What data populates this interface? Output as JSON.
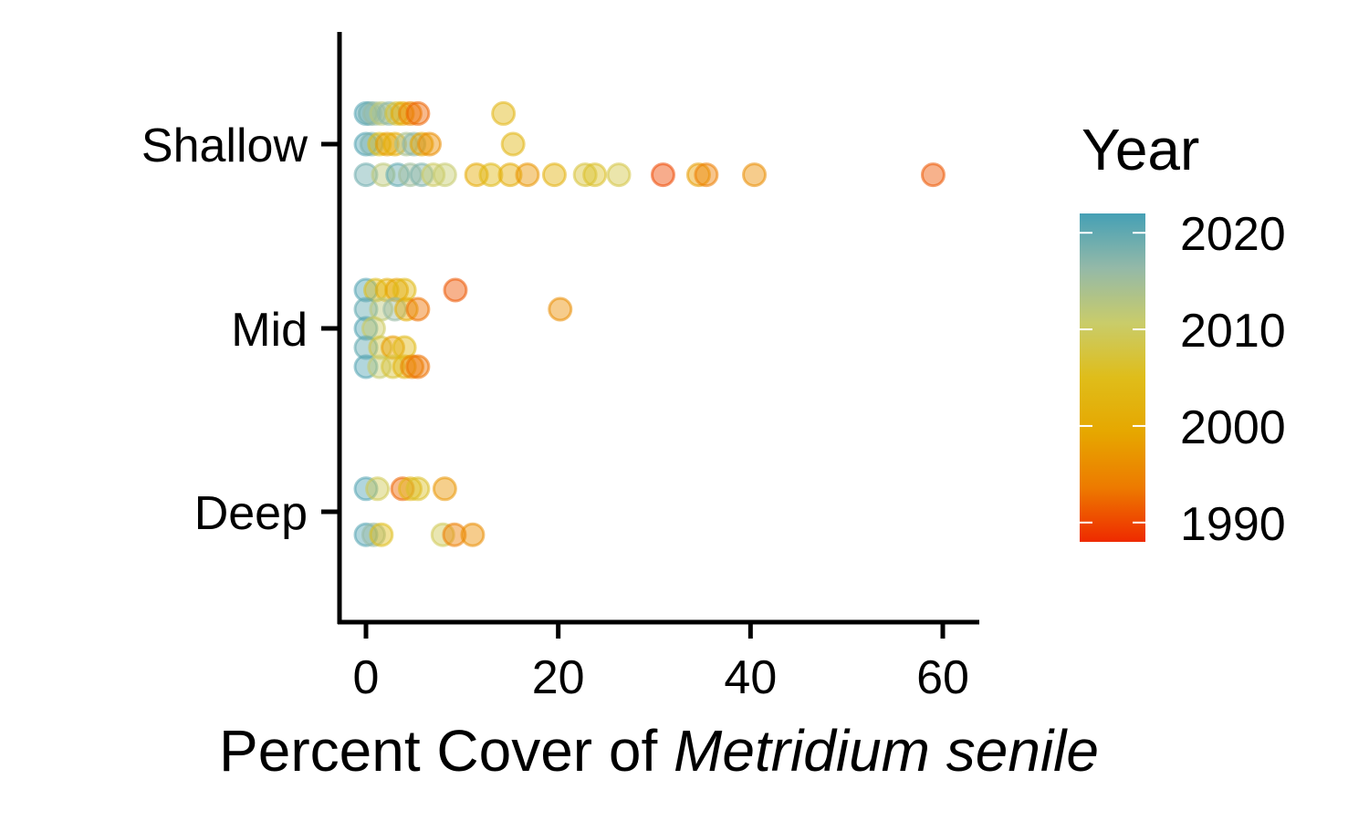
{
  "chart_data": {
    "type": "scatter",
    "xlabel_prefix": "Percent Cover of ",
    "xlabel_species": "Metridium senile",
    "ylabel": "",
    "xlim": [
      -3,
      62
    ],
    "x_ticks": [
      0,
      20,
      40,
      60
    ],
    "y_categories": [
      "Deep",
      "Mid",
      "Shallow"
    ],
    "legend": {
      "title": "Year",
      "ticks": [
        2020,
        2010,
        2000,
        1990
      ],
      "range": [
        1988,
        2022
      ],
      "colors": [
        "#ee2a00",
        "#ed7b00",
        "#e6a700",
        "#dfbd1a",
        "#c9cc6a",
        "#94b9a8",
        "#45a0b5"
      ],
      "placement": "right"
    },
    "grid": false,
    "points": [
      {
        "y": "Shallow",
        "offset": 0.16,
        "x": 0.0,
        "year": 2021
      },
      {
        "y": "Shallow",
        "offset": 0.16,
        "x": 0.4,
        "year": 2019
      },
      {
        "y": "Shallow",
        "offset": 0.16,
        "x": 0.9,
        "year": 2016
      },
      {
        "y": "Shallow",
        "offset": 0.16,
        "x": 1.6,
        "year": 2012
      },
      {
        "y": "Shallow",
        "offset": 0.16,
        "x": 2.4,
        "year": 2017
      },
      {
        "y": "Shallow",
        "offset": 0.16,
        "x": 3.2,
        "year": 2007
      },
      {
        "y": "Shallow",
        "offset": 0.16,
        "x": 3.8,
        "year": 2000
      },
      {
        "y": "Shallow",
        "offset": 0.16,
        "x": 4.6,
        "year": 1995
      },
      {
        "y": "Shallow",
        "offset": 0.16,
        "x": 5.4,
        "year": 1992
      },
      {
        "y": "Shallow",
        "offset": 0.16,
        "x": 14.3,
        "year": 2003
      },
      {
        "y": "Shallow",
        "offset": 0.0,
        "x": 0.0,
        "year": 2021
      },
      {
        "y": "Shallow",
        "offset": 0.0,
        "x": 0.6,
        "year": 2018
      },
      {
        "y": "Shallow",
        "offset": 0.0,
        "x": 1.4,
        "year": 2005
      },
      {
        "y": "Shallow",
        "offset": 0.0,
        "x": 2.2,
        "year": 1998
      },
      {
        "y": "Shallow",
        "offset": 0.0,
        "x": 3.0,
        "year": 2001
      },
      {
        "y": "Shallow",
        "offset": 0.0,
        "x": 4.2,
        "year": 2014
      },
      {
        "y": "Shallow",
        "offset": 0.0,
        "x": 5.0,
        "year": 2017
      },
      {
        "y": "Shallow",
        "offset": 0.0,
        "x": 5.8,
        "year": 1999
      },
      {
        "y": "Shallow",
        "offset": 0.0,
        "x": 6.6,
        "year": 1996
      },
      {
        "y": "Shallow",
        "offset": 0.0,
        "x": 15.3,
        "year": 2003
      },
      {
        "y": "Shallow",
        "offset": -0.16,
        "x": 0.0,
        "year": 2019
      },
      {
        "y": "Shallow",
        "offset": -0.16,
        "x": 1.8,
        "year": 2012
      },
      {
        "y": "Shallow",
        "offset": -0.16,
        "x": 3.3,
        "year": 2020
      },
      {
        "y": "Shallow",
        "offset": -0.16,
        "x": 4.6,
        "year": 2015
      },
      {
        "y": "Shallow",
        "offset": -0.16,
        "x": 5.8,
        "year": 2018
      },
      {
        "y": "Shallow",
        "offset": -0.16,
        "x": 7.0,
        "year": 2010
      },
      {
        "y": "Shallow",
        "offset": -0.16,
        "x": 8.2,
        "year": 2011
      },
      {
        "y": "Shallow",
        "offset": -0.16,
        "x": 11.5,
        "year": 2000
      },
      {
        "y": "Shallow",
        "offset": -0.16,
        "x": 13.0,
        "year": 2004
      },
      {
        "y": "Shallow",
        "offset": -0.16,
        "x": 15.0,
        "year": 2001
      },
      {
        "y": "Shallow",
        "offset": -0.16,
        "x": 16.8,
        "year": 1997
      },
      {
        "y": "Shallow",
        "offset": -0.16,
        "x": 19.6,
        "year": 2002
      },
      {
        "y": "Shallow",
        "offset": -0.16,
        "x": 22.8,
        "year": 2007
      },
      {
        "y": "Shallow",
        "offset": -0.16,
        "x": 23.8,
        "year": 2006
      },
      {
        "y": "Shallow",
        "offset": -0.16,
        "x": 26.3,
        "year": 2008
      },
      {
        "y": "Shallow",
        "offset": -0.16,
        "x": 30.9,
        "year": 1990
      },
      {
        "y": "Shallow",
        "offset": -0.16,
        "x": 34.6,
        "year": 1998
      },
      {
        "y": "Shallow",
        "offset": -0.16,
        "x": 35.4,
        "year": 1994
      },
      {
        "y": "Shallow",
        "offset": -0.16,
        "x": 40.4,
        "year": 1996
      },
      {
        "y": "Shallow",
        "offset": -0.16,
        "x": 59.0,
        "year": 1991
      },
      {
        "y": "Mid",
        "offset": 0.2,
        "x": 0.0,
        "year": 2021
      },
      {
        "y": "Mid",
        "offset": 0.2,
        "x": 1.0,
        "year": 2005
      },
      {
        "y": "Mid",
        "offset": 0.2,
        "x": 2.2,
        "year": 2002
      },
      {
        "y": "Mid",
        "offset": 0.2,
        "x": 3.2,
        "year": 1999
      },
      {
        "y": "Mid",
        "offset": 0.2,
        "x": 4.0,
        "year": 2004
      },
      {
        "y": "Mid",
        "offset": 0.2,
        "x": 9.3,
        "year": 1991
      },
      {
        "y": "Mid",
        "offset": 0.1,
        "x": 0.0,
        "year": 2020
      },
      {
        "y": "Mid",
        "offset": 0.1,
        "x": 1.6,
        "year": 2012
      },
      {
        "y": "Mid",
        "offset": 0.1,
        "x": 3.0,
        "year": 2016
      },
      {
        "y": "Mid",
        "offset": 0.1,
        "x": 4.2,
        "year": 2001
      },
      {
        "y": "Mid",
        "offset": 0.1,
        "x": 5.4,
        "year": 1993
      },
      {
        "y": "Mid",
        "offset": 0.1,
        "x": 20.2,
        "year": 1996
      },
      {
        "y": "Mid",
        "offset": 0.0,
        "x": 0.0,
        "year": 2021
      },
      {
        "y": "Mid",
        "offset": 0.0,
        "x": 0.8,
        "year": 2010
      },
      {
        "y": "Mid",
        "offset": -0.1,
        "x": 0.0,
        "year": 2020
      },
      {
        "y": "Mid",
        "offset": -0.1,
        "x": 1.5,
        "year": 2008
      },
      {
        "y": "Mid",
        "offset": -0.1,
        "x": 2.8,
        "year": 1998
      },
      {
        "y": "Mid",
        "offset": -0.1,
        "x": 4.0,
        "year": 2004
      },
      {
        "y": "Mid",
        "offset": -0.2,
        "x": 0.0,
        "year": 2021
      },
      {
        "y": "Mid",
        "offset": -0.2,
        "x": 1.4,
        "year": 2011
      },
      {
        "y": "Mid",
        "offset": -0.2,
        "x": 2.8,
        "year": 2007
      },
      {
        "y": "Mid",
        "offset": -0.2,
        "x": 4.0,
        "year": 2003
      },
      {
        "y": "Mid",
        "offset": -0.2,
        "x": 4.8,
        "year": 1995
      },
      {
        "y": "Mid",
        "offset": -0.2,
        "x": 5.4,
        "year": 1993
      },
      {
        "y": "Deep",
        "offset": 0.12,
        "x": 0.0,
        "year": 2021
      },
      {
        "y": "Deep",
        "offset": 0.12,
        "x": 1.2,
        "year": 2009
      },
      {
        "y": "Deep",
        "offset": 0.12,
        "x": 3.8,
        "year": 1992
      },
      {
        "y": "Deep",
        "offset": 0.12,
        "x": 4.6,
        "year": 2003
      },
      {
        "y": "Deep",
        "offset": 0.12,
        "x": 5.4,
        "year": 2006
      },
      {
        "y": "Deep",
        "offset": 0.12,
        "x": 8.2,
        "year": 1997
      },
      {
        "y": "Deep",
        "offset": -0.12,
        "x": 0.0,
        "year": 2021
      },
      {
        "y": "Deep",
        "offset": -0.12,
        "x": 0.8,
        "year": 2016
      },
      {
        "y": "Deep",
        "offset": -0.12,
        "x": 1.6,
        "year": 2005
      },
      {
        "y": "Deep",
        "offset": -0.12,
        "x": 8.0,
        "year": 2009
      },
      {
        "y": "Deep",
        "offset": -0.12,
        "x": 9.2,
        "year": 1994
      },
      {
        "y": "Deep",
        "offset": -0.12,
        "x": 11.1,
        "year": 1996
      }
    ]
  }
}
